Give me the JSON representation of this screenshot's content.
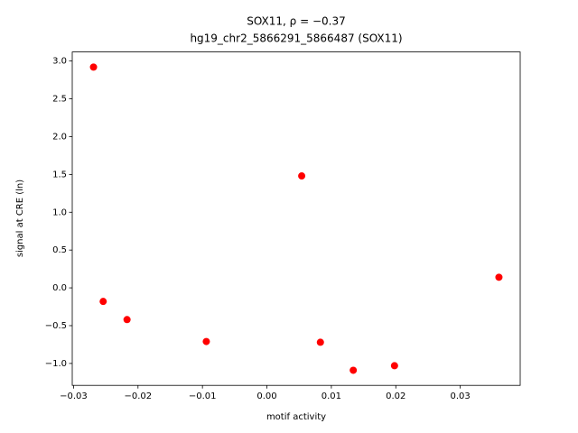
{
  "chart_data": {
    "type": "scatter",
    "title": "SOX11, ρ = −0.37",
    "subtitle": "hg19_chr2_5866291_5866487 (SOX11)",
    "x_label": "motif activity",
    "y_label": "signal at CRE (ln)",
    "color": "#ff0000",
    "series": [
      {
        "x": [
          -0.0269,
          -0.0254,
          -0.0217,
          -0.0094,
          0.0054,
          0.0083,
          0.0134,
          0.0198,
          0.036
        ],
        "values": [
          2.92,
          -0.18,
          -0.42,
          -0.71,
          1.48,
          -0.72,
          -1.09,
          -1.03,
          0.14
        ]
      }
    ],
    "xlim": [
      -0.0302,
      0.0393
    ],
    "ylim": [
      -1.29,
      3.12
    ],
    "xticks": [
      {
        "value": -0.03,
        "label": "−0.03"
      },
      {
        "value": -0.02,
        "label": "−0.02"
      },
      {
        "value": -0.01,
        "label": "−0.01"
      },
      {
        "value": 0,
        "label": "0.00"
      },
      {
        "value": 0.01,
        "label": "0.01"
      },
      {
        "value": 0.02,
        "label": "0.02"
      },
      {
        "value": 0.03,
        "label": "0.03"
      }
    ],
    "yticks": [
      {
        "value": -1,
        "label": "−1.0"
      },
      {
        "value": -0.5,
        "label": "−0.5"
      },
      {
        "value": 0,
        "label": "0.0"
      },
      0.5,
      {
        "value": 1,
        "label": "1.0"
      },
      1.5,
      {
        "value": 2,
        "label": "2.0"
      },
      2.5,
      {
        "value": 3,
        "label": "3.0"
      }
    ]
  }
}
